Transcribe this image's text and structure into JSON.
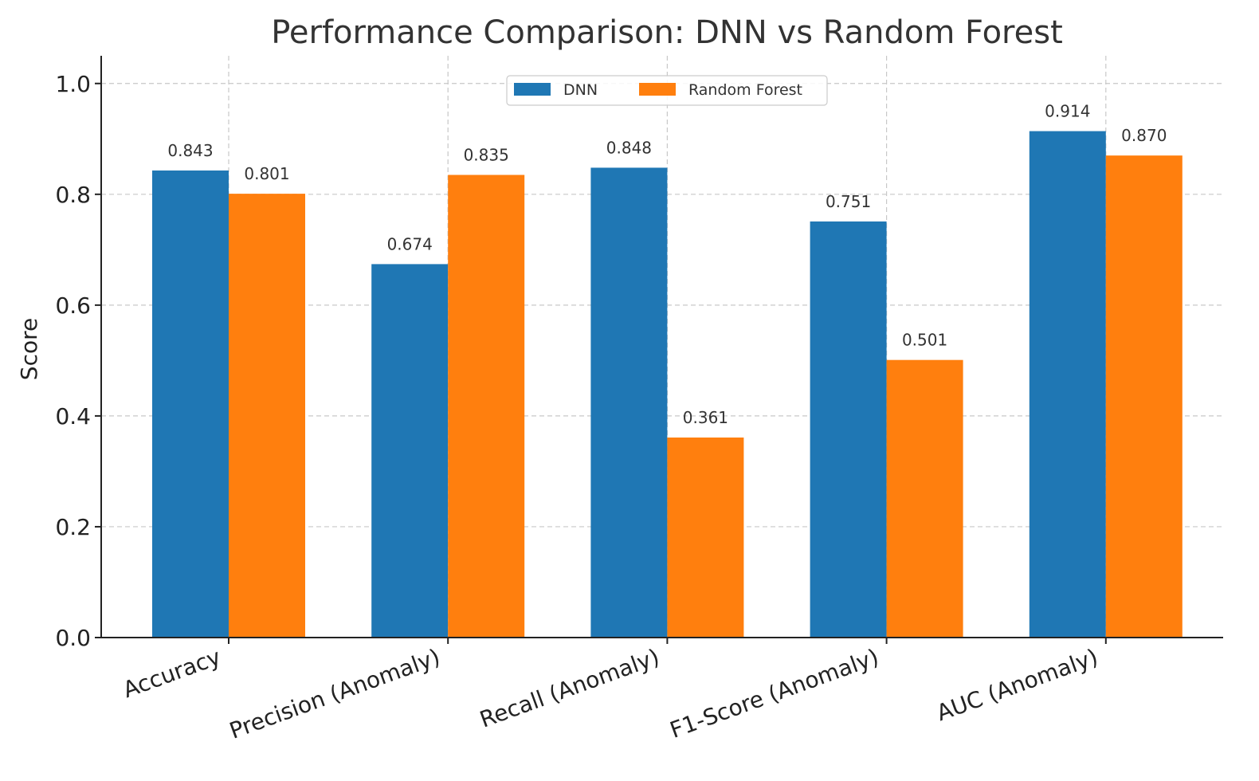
{
  "chart_data": {
    "type": "bar",
    "title": "Performance Comparison: DNN vs Random Forest",
    "xlabel": "",
    "ylabel": "Score",
    "ylim": [
      0,
      1.05
    ],
    "yticks": [
      "0.0",
      "0.2",
      "0.4",
      "0.6",
      "0.8",
      "1.0"
    ],
    "grid": true,
    "legend_position": "top-center",
    "categories": [
      "Accuracy",
      "Precision (Anomaly)",
      "Recall (Anomaly)",
      "F1-Score (Anomaly)",
      "AUC (Anomaly)"
    ],
    "series": [
      {
        "name": "DNN",
        "color": "#1f77b4",
        "values": [
          0.843,
          0.674,
          0.848,
          0.751,
          0.914
        ],
        "labels": [
          "0.843",
          "0.674",
          "0.848",
          "0.751",
          "0.914"
        ]
      },
      {
        "name": "Random Forest",
        "color": "#ff7f0e",
        "values": [
          0.801,
          0.835,
          0.361,
          0.501,
          0.87
        ],
        "labels": [
          "0.801",
          "0.835",
          "0.361",
          "0.501",
          "0.870"
        ]
      }
    ]
  }
}
